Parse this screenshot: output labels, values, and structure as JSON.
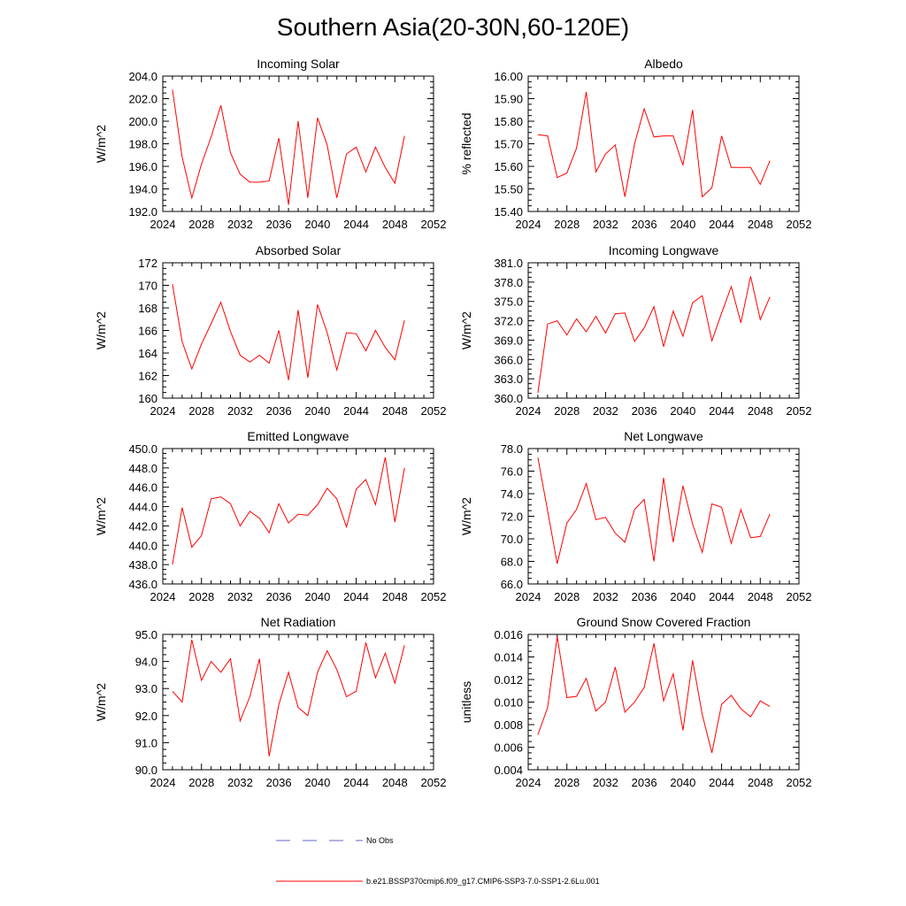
{
  "figure": {
    "title": "Southern Asia(20-30N,60-120E)",
    "line_color": "#ff0000",
    "obs_color": "#6666cc",
    "legend": [
      {
        "label": "No Obs",
        "style": "dashed",
        "color": "#6666cc"
      },
      {
        "label": "b.e21.BSSP370cmip6.f09_g17.CMIP6-SSP3-7.0-SSP1-2.6Lu.001",
        "style": "solid",
        "color": "#ff0000"
      }
    ]
  },
  "chart_data": [
    {
      "type": "line",
      "title": "Incoming Solar",
      "ylabel": "W/m^2",
      "xlim": [
        2024,
        2052
      ],
      "ylim": [
        192,
        204
      ],
      "x_ticks": [
        "2024",
        "2028",
        "2032",
        "2036",
        "2040",
        "2044",
        "2048",
        "2052"
      ],
      "y_ticks": [
        "192.0",
        "194.0",
        "196.0",
        "198.0",
        "200.0",
        "202.0",
        "204.0"
      ],
      "x": [
        2025,
        2026,
        2027,
        2028,
        2029,
        2030,
        2031,
        2032,
        2033,
        2034,
        2035,
        2036,
        2037,
        2038,
        2039,
        2040,
        2041,
        2042,
        2043,
        2044,
        2045,
        2046,
        2047,
        2048,
        2049
      ],
      "values": [
        202.8,
        196.8,
        193.2,
        196.2,
        198.6,
        201.4,
        197.2,
        195.3,
        194.6,
        194.6,
        194.7,
        198.5,
        192.6,
        200.0,
        193.2,
        200.3,
        197.9,
        193.2,
        197.1,
        197.7,
        195.5,
        197.7,
        195.9,
        194.5,
        198.7
      ]
    },
    {
      "type": "line",
      "title": "Albedo",
      "ylabel": "% reflected",
      "xlim": [
        2024,
        2052
      ],
      "ylim": [
        15.4,
        16.0
      ],
      "x_ticks": [
        "2024",
        "2028",
        "2032",
        "2036",
        "2040",
        "2044",
        "2048",
        "2052"
      ],
      "y_ticks": [
        "15.40",
        "15.50",
        "15.60",
        "15.70",
        "15.80",
        "15.90",
        "16.00"
      ],
      "x": [
        2025,
        2026,
        2027,
        2028,
        2029,
        2030,
        2031,
        2032,
        2033,
        2034,
        2035,
        2036,
        2037,
        2038,
        2039,
        2040,
        2041,
        2042,
        2043,
        2044,
        2045,
        2046,
        2047,
        2048,
        2049
      ],
      "values": [
        15.74,
        15.735,
        15.55,
        15.57,
        15.68,
        15.93,
        15.575,
        15.655,
        15.695,
        15.465,
        15.7,
        15.855,
        15.73,
        15.735,
        15.735,
        15.605,
        15.85,
        15.465,
        15.505,
        15.735,
        15.595,
        15.595,
        15.595,
        15.52,
        15.625
      ]
    },
    {
      "type": "line",
      "title": "Absorbed Solar",
      "ylabel": "W/m^2",
      "xlim": [
        2024,
        2052
      ],
      "ylim": [
        160,
        172
      ],
      "x_ticks": [
        "2024",
        "2028",
        "2032",
        "2036",
        "2040",
        "2044",
        "2048",
        "2052"
      ],
      "y_ticks": [
        "160",
        "162",
        "164",
        "166",
        "168",
        "170",
        "172"
      ],
      "x": [
        2025,
        2026,
        2027,
        2028,
        2029,
        2030,
        2031,
        2032,
        2033,
        2034,
        2035,
        2036,
        2037,
        2038,
        2039,
        2040,
        2041,
        2042,
        2043,
        2044,
        2045,
        2046,
        2047,
        2048,
        2049
      ],
      "values": [
        170.1,
        165.0,
        162.6,
        164.8,
        166.6,
        168.5,
        165.9,
        163.8,
        163.2,
        163.8,
        163.1,
        166.0,
        161.6,
        167.8,
        161.8,
        168.3,
        165.8,
        162.5,
        165.8,
        165.7,
        164.2,
        166.0,
        164.5,
        163.4,
        166.9
      ]
    },
    {
      "type": "line",
      "title": "Incoming Longwave",
      "ylabel": "W/m^2",
      "xlim": [
        2024,
        2052
      ],
      "ylim": [
        360,
        381
      ],
      "x_ticks": [
        "2024",
        "2028",
        "2032",
        "2036",
        "2040",
        "2044",
        "2048",
        "2052"
      ],
      "y_ticks": [
        "360.0",
        "363.0",
        "366.0",
        "369.0",
        "372.0",
        "375.0",
        "378.0",
        "381.0"
      ],
      "x": [
        2025,
        2026,
        2027,
        2028,
        2029,
        2030,
        2031,
        2032,
        2033,
        2034,
        2035,
        2036,
        2037,
        2038,
        2039,
        2040,
        2041,
        2042,
        2043,
        2044,
        2045,
        2046,
        2047,
        2048,
        2049
      ],
      "values": [
        360.8,
        371.5,
        372.0,
        369.8,
        372.3,
        370.3,
        372.7,
        370.1,
        373.1,
        373.2,
        368.8,
        370.9,
        374.2,
        368.0,
        373.5,
        369.6,
        374.8,
        375.9,
        368.9,
        373.2,
        377.3,
        371.7,
        378.9,
        372.2,
        375.7
      ]
    },
    {
      "type": "line",
      "title": "Emitted Longwave",
      "ylabel": "W/m^2",
      "xlim": [
        2024,
        2052
      ],
      "ylim": [
        436,
        450
      ],
      "x_ticks": [
        "2024",
        "2028",
        "2032",
        "2036",
        "2040",
        "2044",
        "2048",
        "2052"
      ],
      "y_ticks": [
        "436.0",
        "438.0",
        "440.0",
        "442.0",
        "444.0",
        "446.0",
        "448.0",
        "450.0"
      ],
      "x": [
        2025,
        2026,
        2027,
        2028,
        2029,
        2030,
        2031,
        2032,
        2033,
        2034,
        2035,
        2036,
        2037,
        2038,
        2039,
        2040,
        2041,
        2042,
        2043,
        2044,
        2045,
        2046,
        2047,
        2048,
        2049
      ],
      "values": [
        438.0,
        443.9,
        439.8,
        441.0,
        444.8,
        445.0,
        444.3,
        442.0,
        443.5,
        442.8,
        441.3,
        444.3,
        442.3,
        443.2,
        443.1,
        444.2,
        445.9,
        444.8,
        441.9,
        445.8,
        446.8,
        444.2,
        449.1,
        442.4,
        448.0
      ]
    },
    {
      "type": "line",
      "title": "Net Longwave",
      "ylabel": "W/m^2",
      "xlim": [
        2024,
        2052
      ],
      "ylim": [
        66,
        78
      ],
      "x_ticks": [
        "2024",
        "2028",
        "2032",
        "2036",
        "2040",
        "2044",
        "2048",
        "2052"
      ],
      "y_ticks": [
        "66.0",
        "68.0",
        "70.0",
        "72.0",
        "74.0",
        "76.0",
        "78.0"
      ],
      "x": [
        2025,
        2026,
        2027,
        2028,
        2029,
        2030,
        2031,
        2032,
        2033,
        2034,
        2035,
        2036,
        2037,
        2038,
        2039,
        2040,
        2041,
        2042,
        2043,
        2044,
        2045,
        2046,
        2047,
        2048,
        2049
      ],
      "values": [
        77.2,
        72.5,
        67.8,
        71.4,
        72.6,
        74.9,
        71.7,
        71.9,
        70.5,
        69.7,
        72.6,
        73.5,
        68.0,
        75.4,
        69.7,
        74.7,
        71.3,
        68.8,
        73.1,
        72.8,
        69.6,
        72.6,
        70.1,
        70.2,
        72.2
      ]
    },
    {
      "type": "line",
      "title": "Net Radiation",
      "ylabel": "W/m^2",
      "xlim": [
        2024,
        2052
      ],
      "ylim": [
        90,
        95
      ],
      "x_ticks": [
        "2024",
        "2028",
        "2032",
        "2036",
        "2040",
        "2044",
        "2048",
        "2052"
      ],
      "y_ticks": [
        "90.0",
        "91.0",
        "92.0",
        "93.0",
        "94.0",
        "95.0"
      ],
      "x": [
        2025,
        2026,
        2027,
        2028,
        2029,
        2030,
        2031,
        2032,
        2033,
        2034,
        2035,
        2036,
        2037,
        2038,
        2039,
        2040,
        2041,
        2042,
        2043,
        2044,
        2045,
        2046,
        2047,
        2048,
        2049
      ],
      "values": [
        92.9,
        92.5,
        94.8,
        93.3,
        94.0,
        93.6,
        94.1,
        91.8,
        92.7,
        94.1,
        90.5,
        92.4,
        93.6,
        92.3,
        92.0,
        93.6,
        94.4,
        93.7,
        92.7,
        92.9,
        94.7,
        93.4,
        94.3,
        93.2,
        94.6
      ]
    },
    {
      "type": "line",
      "title": "Ground Snow Covered Fraction",
      "ylabel": "unitless",
      "xlim": [
        2024,
        2052
      ],
      "ylim": [
        0.004,
        0.016
      ],
      "x_ticks": [
        "2024",
        "2028",
        "2032",
        "2036",
        "2040",
        "2044",
        "2048",
        "2052"
      ],
      "y_ticks": [
        "0.004",
        "0.006",
        "0.008",
        "0.010",
        "0.012",
        "0.014",
        "0.016"
      ],
      "x": [
        2025,
        2026,
        2027,
        2028,
        2029,
        2030,
        2031,
        2032,
        2033,
        2034,
        2035,
        2036,
        2037,
        2038,
        2039,
        2040,
        2041,
        2042,
        2043,
        2044,
        2045,
        2046,
        2047,
        2048,
        2049
      ],
      "values": [
        0.0071,
        0.0095,
        0.0158,
        0.0104,
        0.0105,
        0.0121,
        0.0092,
        0.01,
        0.0131,
        0.0091,
        0.01,
        0.0113,
        0.0152,
        0.0101,
        0.0125,
        0.0075,
        0.0137,
        0.0089,
        0.0055,
        0.0098,
        0.0106,
        0.0094,
        0.0087,
        0.0101,
        0.0096
      ]
    }
  ]
}
